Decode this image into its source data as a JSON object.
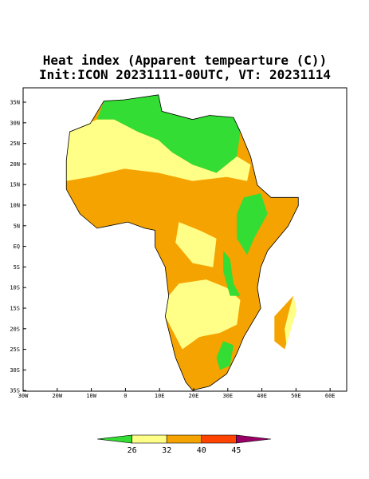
{
  "title": [
    "Heat index (Apparent tempearture (C))",
    "Init:ICON 20231111-00UTC, VT: 20231114"
  ],
  "map": {
    "lat_labels": [
      "35N",
      "30N",
      "25N",
      "20N",
      "15N",
      "10N",
      "5N",
      "EQ",
      "5S",
      "10S",
      "15S",
      "20S",
      "25S",
      "30S",
      "35S"
    ],
    "lon_labels": [
      "30W",
      "20W",
      "10W",
      "0",
      "10E",
      "20E",
      "30E",
      "40E",
      "50E",
      "60E"
    ]
  },
  "colorbar": {
    "levels": [
      26,
      32,
      40,
      45
    ]
  }
}
